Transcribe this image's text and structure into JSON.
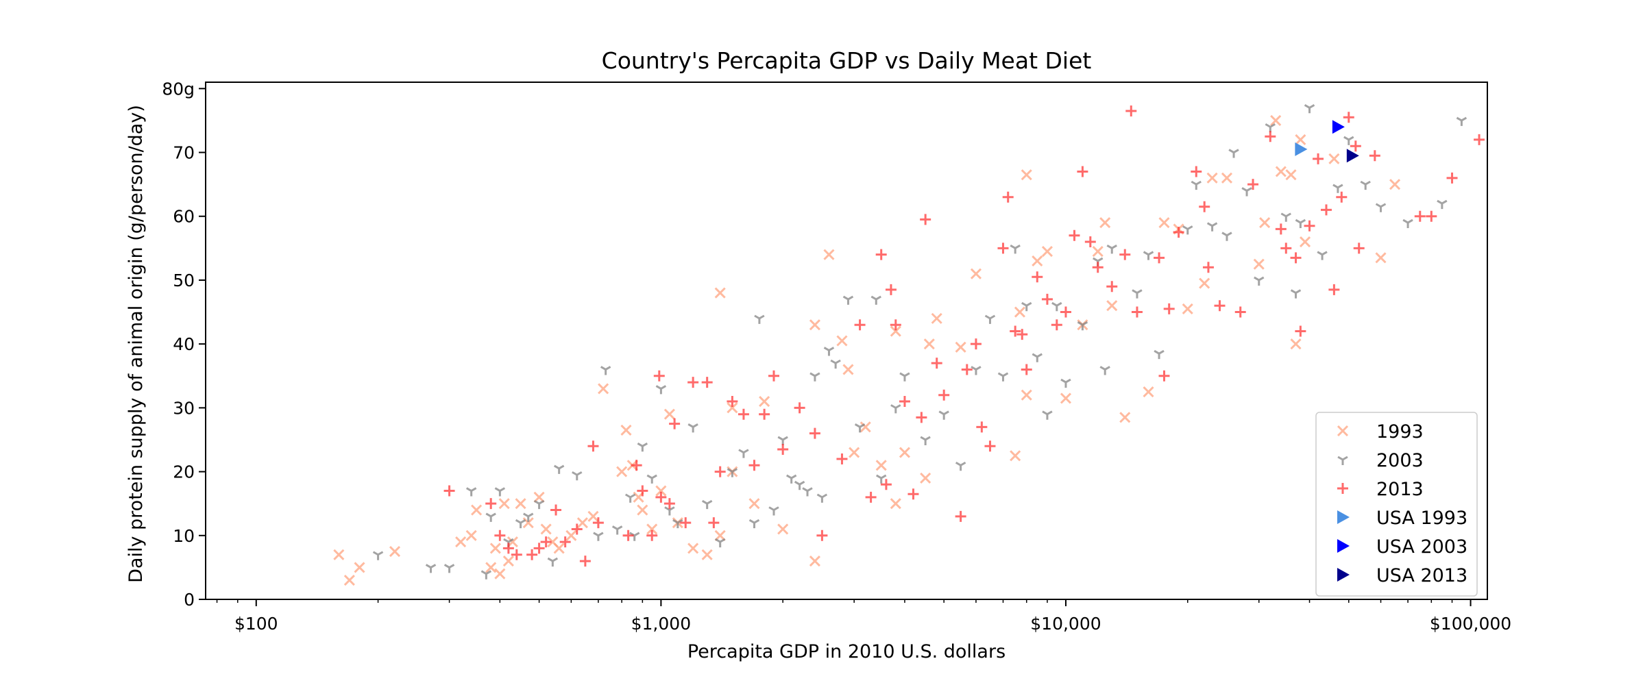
{
  "chart_data": {
    "type": "scatter",
    "title": "Country's Percapita GDP vs Daily Meat Diet",
    "xlabel": "Percapita GDP in 2010 U.S. dollars",
    "ylabel": "Daily protein supply of animal origin (g/person/day)",
    "x_scale": "log",
    "xlim": [
      75,
      110000
    ],
    "ylim": [
      0,
      81
    ],
    "x_ticks": [
      {
        "value": 100,
        "label": "$100"
      },
      {
        "value": 1000,
        "label": "$1,000"
      },
      {
        "value": 10000,
        "label": "$10,000"
      },
      {
        "value": 100000,
        "label": "$100,000"
      }
    ],
    "y_ticks": [
      {
        "value": 0,
        "label": "0"
      },
      {
        "value": 10,
        "label": "10"
      },
      {
        "value": 20,
        "label": "20"
      },
      {
        "value": 30,
        "label": "30"
      },
      {
        "value": 40,
        "label": "40"
      },
      {
        "value": 50,
        "label": "50"
      },
      {
        "value": 60,
        "label": "60"
      },
      {
        "value": 70,
        "label": "70"
      },
      {
        "value": 80,
        "label": "80g"
      }
    ],
    "legend_position": "bottom-right",
    "grid": false,
    "series": [
      {
        "name": "1993",
        "marker": "x",
        "color": "#ffa07a",
        "points": [
          [
            160,
            7
          ],
          [
            170,
            3
          ],
          [
            180,
            5
          ],
          [
            220,
            7.5
          ],
          [
            320,
            9
          ],
          [
            340,
            10
          ],
          [
            350,
            14
          ],
          [
            380,
            5
          ],
          [
            390,
            8
          ],
          [
            400,
            4
          ],
          [
            410,
            15
          ],
          [
            420,
            6
          ],
          [
            430,
            9
          ],
          [
            450,
            15
          ],
          [
            470,
            12
          ],
          [
            500,
            16
          ],
          [
            520,
            11
          ],
          [
            540,
            9
          ],
          [
            560,
            8
          ],
          [
            600,
            10
          ],
          [
            640,
            12
          ],
          [
            680,
            13
          ],
          [
            720,
            33
          ],
          [
            800,
            20
          ],
          [
            820,
            26.5
          ],
          [
            850,
            21
          ],
          [
            880,
            16
          ],
          [
            900,
            14
          ],
          [
            950,
            11
          ],
          [
            1000,
            17
          ],
          [
            1050,
            29
          ],
          [
            1100,
            12
          ],
          [
            1200,
            8
          ],
          [
            1300,
            7
          ],
          [
            1400,
            10
          ],
          [
            1400,
            48
          ],
          [
            1500,
            30
          ],
          [
            1500,
            20
          ],
          [
            1700,
            15
          ],
          [
            1800,
            31
          ],
          [
            2000,
            11
          ],
          [
            2400,
            43
          ],
          [
            2400,
            6
          ],
          [
            2600,
            54
          ],
          [
            2800,
            40.5
          ],
          [
            2900,
            36
          ],
          [
            3000,
            23
          ],
          [
            3200,
            27
          ],
          [
            3500,
            21
          ],
          [
            3800,
            15
          ],
          [
            3800,
            42
          ],
          [
            4000,
            23
          ],
          [
            4500,
            19
          ],
          [
            4600,
            40
          ],
          [
            4800,
            44
          ],
          [
            5500,
            39.5
          ],
          [
            6000,
            51
          ],
          [
            7500,
            22.5
          ],
          [
            7700,
            45
          ],
          [
            8000,
            66.5
          ],
          [
            8000,
            32
          ],
          [
            8500,
            53
          ],
          [
            9000,
            54.5
          ],
          [
            10000,
            31.5
          ],
          [
            11000,
            43
          ],
          [
            12000,
            54.5
          ],
          [
            12500,
            59
          ],
          [
            13000,
            46
          ],
          [
            14000,
            28.5
          ],
          [
            16000,
            32.5
          ],
          [
            17500,
            59
          ],
          [
            19000,
            58
          ],
          [
            20000,
            45.5
          ],
          [
            22000,
            49.5
          ],
          [
            23000,
            66
          ],
          [
            25000,
            66
          ],
          [
            30000,
            52.5
          ],
          [
            31000,
            59
          ],
          [
            33000,
            75
          ],
          [
            34000,
            67
          ],
          [
            36000,
            66.5
          ],
          [
            37000,
            40
          ],
          [
            38000,
            72
          ],
          [
            39000,
            56
          ],
          [
            46000,
            69
          ],
          [
            60000,
            53.5
          ],
          [
            65000,
            65
          ]
        ]
      },
      {
        "name": "2003",
        "marker": "tri",
        "color": "#808080",
        "points": [
          [
            200,
            7
          ],
          [
            270,
            5
          ],
          [
            300,
            5
          ],
          [
            340,
            17
          ],
          [
            370,
            4
          ],
          [
            380,
            13
          ],
          [
            400,
            17
          ],
          [
            420,
            9
          ],
          [
            450,
            12
          ],
          [
            470,
            13
          ],
          [
            500,
            15
          ],
          [
            540,
            6
          ],
          [
            560,
            20.5
          ],
          [
            620,
            19.5
          ],
          [
            700,
            10
          ],
          [
            730,
            36
          ],
          [
            780,
            11
          ],
          [
            840,
            16
          ],
          [
            860,
            10
          ],
          [
            900,
            24
          ],
          [
            950,
            19
          ],
          [
            1000,
            33
          ],
          [
            1050,
            14
          ],
          [
            1100,
            12
          ],
          [
            1200,
            27
          ],
          [
            1300,
            15
          ],
          [
            1400,
            9
          ],
          [
            1500,
            20
          ],
          [
            1600,
            23
          ],
          [
            1700,
            12
          ],
          [
            1750,
            44
          ],
          [
            1900,
            14
          ],
          [
            2000,
            25
          ],
          [
            2100,
            19
          ],
          [
            2200,
            18
          ],
          [
            2300,
            17
          ],
          [
            2400,
            35
          ],
          [
            2500,
            16
          ],
          [
            2600,
            39
          ],
          [
            2700,
            37
          ],
          [
            2900,
            47
          ],
          [
            3100,
            27
          ],
          [
            3400,
            47
          ],
          [
            3500,
            19
          ],
          [
            3800,
            30
          ],
          [
            4000,
            35
          ],
          [
            4500,
            25
          ],
          [
            5000,
            29
          ],
          [
            5500,
            21
          ],
          [
            6000,
            36
          ],
          [
            6500,
            44
          ],
          [
            7000,
            35
          ],
          [
            7500,
            55
          ],
          [
            8000,
            46
          ],
          [
            8500,
            38
          ],
          [
            9000,
            29
          ],
          [
            9500,
            46
          ],
          [
            10000,
            34
          ],
          [
            11000,
            43
          ],
          [
            12000,
            53
          ],
          [
            12500,
            36
          ],
          [
            13000,
            55
          ],
          [
            15000,
            48
          ],
          [
            16000,
            54
          ],
          [
            17000,
            38.5
          ],
          [
            20000,
            58
          ],
          [
            21000,
            65
          ],
          [
            23000,
            58.5
          ],
          [
            25000,
            57
          ],
          [
            26000,
            70
          ],
          [
            28000,
            64
          ],
          [
            30000,
            50
          ],
          [
            32000,
            74
          ],
          [
            35000,
            60
          ],
          [
            37000,
            48
          ],
          [
            38000,
            59
          ],
          [
            40000,
            77
          ],
          [
            43000,
            54
          ],
          [
            47000,
            64.5
          ],
          [
            50000,
            72
          ],
          [
            55000,
            65
          ],
          [
            60000,
            61.5
          ],
          [
            70000,
            59
          ],
          [
            85000,
            62
          ],
          [
            95000,
            75
          ]
        ]
      },
      {
        "name": "2013",
        "marker": "+",
        "color": "#ff3030",
        "points": [
          [
            300,
            17
          ],
          [
            380,
            15
          ],
          [
            400,
            10
          ],
          [
            420,
            8
          ],
          [
            440,
            7
          ],
          [
            480,
            7
          ],
          [
            500,
            8
          ],
          [
            520,
            9
          ],
          [
            550,
            14
          ],
          [
            580,
            9
          ],
          [
            620,
            11
          ],
          [
            650,
            6
          ],
          [
            680,
            24
          ],
          [
            700,
            12
          ],
          [
            830,
            10
          ],
          [
            870,
            21
          ],
          [
            900,
            17
          ],
          [
            950,
            10
          ],
          [
            990,
            35
          ],
          [
            1000,
            16
          ],
          [
            1050,
            15
          ],
          [
            1080,
            27.5
          ],
          [
            1150,
            12
          ],
          [
            1200,
            34
          ],
          [
            1300,
            34
          ],
          [
            1350,
            12
          ],
          [
            1400,
            20
          ],
          [
            1500,
            31
          ],
          [
            1600,
            29
          ],
          [
            1700,
            21
          ],
          [
            1800,
            29
          ],
          [
            1900,
            35
          ],
          [
            2000,
            23.5
          ],
          [
            2200,
            30
          ],
          [
            2400,
            26
          ],
          [
            2500,
            10
          ],
          [
            2800,
            22
          ],
          [
            3100,
            43
          ],
          [
            3300,
            16
          ],
          [
            3500,
            54
          ],
          [
            3600,
            18
          ],
          [
            3700,
            48.5
          ],
          [
            3800,
            43
          ],
          [
            4000,
            31
          ],
          [
            4200,
            16.5
          ],
          [
            4400,
            28.5
          ],
          [
            4500,
            59.5
          ],
          [
            4800,
            37
          ],
          [
            5000,
            32
          ],
          [
            5500,
            13
          ],
          [
            5700,
            36
          ],
          [
            6000,
            40
          ],
          [
            6200,
            27
          ],
          [
            6500,
            24
          ],
          [
            7000,
            55
          ],
          [
            7200,
            63
          ],
          [
            7500,
            42
          ],
          [
            7800,
            41.5
          ],
          [
            8000,
            36
          ],
          [
            8500,
            50.5
          ],
          [
            9000,
            47
          ],
          [
            9500,
            43
          ],
          [
            10000,
            45
          ],
          [
            10500,
            57
          ],
          [
            11000,
            67
          ],
          [
            11500,
            56
          ],
          [
            12000,
            52
          ],
          [
            13000,
            49
          ],
          [
            14000,
            54
          ],
          [
            14500,
            76.5
          ],
          [
            15000,
            45
          ],
          [
            17000,
            53.5
          ],
          [
            17500,
            35
          ],
          [
            18000,
            45.5
          ],
          [
            19000,
            57.5
          ],
          [
            21000,
            67
          ],
          [
            22000,
            61.5
          ],
          [
            22500,
            52
          ],
          [
            24000,
            46
          ],
          [
            27000,
            45
          ],
          [
            29000,
            65
          ],
          [
            32000,
            72.5
          ],
          [
            34000,
            58
          ],
          [
            35000,
            55
          ],
          [
            37000,
            53.5
          ],
          [
            38000,
            42
          ],
          [
            40000,
            58.5
          ],
          [
            42000,
            69
          ],
          [
            44000,
            61
          ],
          [
            46000,
            48.5
          ],
          [
            48000,
            63
          ],
          [
            50000,
            75.5
          ],
          [
            52000,
            71
          ],
          [
            53000,
            55
          ],
          [
            58000,
            69.5
          ],
          [
            75000,
            60
          ],
          [
            80000,
            60
          ],
          [
            90000,
            66
          ],
          [
            105000,
            72
          ]
        ]
      },
      {
        "name": "USA 1993",
        "marker": "triangle-right",
        "color": "#4a90e2",
        "points": [
          [
            38000,
            70.5
          ]
        ]
      },
      {
        "name": "USA 2003",
        "marker": "triangle-right",
        "color": "#0000ff",
        "points": [
          [
            47000,
            74
          ]
        ]
      },
      {
        "name": "USA 2013",
        "marker": "triangle-right",
        "color": "#00008b",
        "points": [
          [
            51000,
            69.5
          ]
        ]
      }
    ]
  }
}
